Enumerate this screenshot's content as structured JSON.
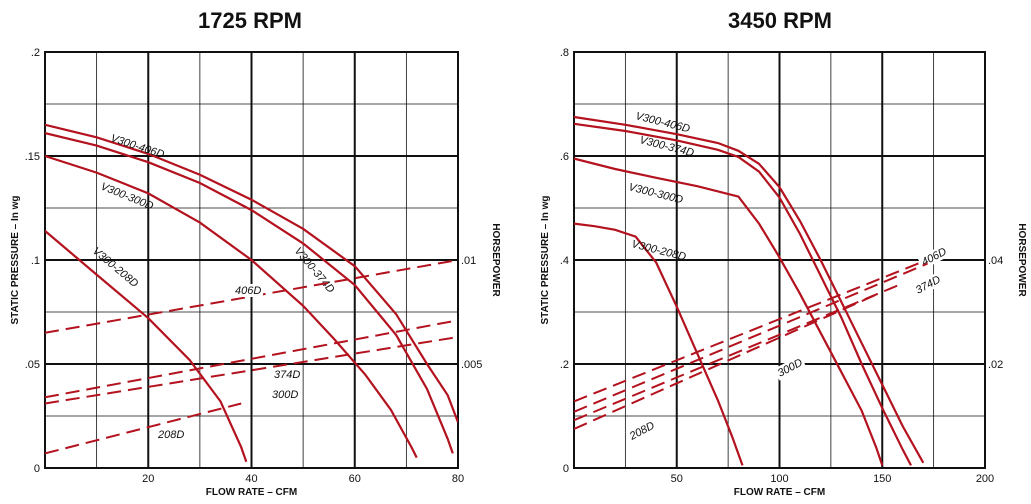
{
  "chart_data": [
    {
      "type": "line",
      "title": "1725 RPM",
      "xlabel": "FLOW RATE – CFM",
      "ylabel": "STATIC PRESSURE – In wg",
      "y2label": "HORSEPOWER",
      "xlim": [
        0,
        80
      ],
      "ylim": [
        0,
        0.2
      ],
      "y2lim": [
        0,
        0.02
      ],
      "xticks": [
        "20",
        "40",
        "60",
        "80"
      ],
      "yticks": [
        "0",
        ".05",
        ".1",
        ".15",
        ".2"
      ],
      "y2ticks": [
        ".005",
        ".01"
      ],
      "grid": true,
      "pressure_series": [
        {
          "name": "V300-406D",
          "points": [
            [
              0,
              0.165
            ],
            [
              10,
              0.159
            ],
            [
              20,
              0.151
            ],
            [
              30,
              0.141
            ],
            [
              40,
              0.129
            ],
            [
              50,
              0.115
            ],
            [
              60,
              0.097
            ],
            [
              68,
              0.074
            ],
            [
              74,
              0.05
            ],
            [
              78,
              0.035
            ],
            [
              80,
              0.022
            ]
          ]
        },
        {
          "name": "V300-374D",
          "points": [
            [
              0,
              0.161
            ],
            [
              10,
              0.155
            ],
            [
              20,
              0.147
            ],
            [
              30,
              0.137
            ],
            [
              40,
              0.124
            ],
            [
              50,
              0.108
            ],
            [
              60,
              0.088
            ],
            [
              68,
              0.064
            ],
            [
              74,
              0.038
            ],
            [
              78,
              0.014
            ],
            [
              79,
              0.007
            ]
          ]
        },
        {
          "name": "V300-300D",
          "points": [
            [
              0,
              0.15
            ],
            [
              10,
              0.142
            ],
            [
              20,
              0.132
            ],
            [
              30,
              0.118
            ],
            [
              40,
              0.1
            ],
            [
              50,
              0.078
            ],
            [
              56,
              0.062
            ],
            [
              62,
              0.045
            ],
            [
              67,
              0.028
            ],
            [
              71,
              0.01
            ],
            [
              72,
              0.005
            ]
          ]
        },
        {
          "name": "V300-208D",
          "points": [
            [
              0,
              0.114
            ],
            [
              10,
              0.093
            ],
            [
              20,
              0.072
            ],
            [
              28,
              0.052
            ],
            [
              34,
              0.032
            ],
            [
              38,
              0.01
            ],
            [
              39,
              0.003
            ]
          ]
        }
      ],
      "horsepower_series": [
        {
          "name": "406D",
          "points": [
            [
              0,
              0.0065
            ],
            [
              80,
              0.01
            ]
          ]
        },
        {
          "name": "374D",
          "points": [
            [
              0,
              0.0034
            ],
            [
              80,
              0.0071
            ]
          ]
        },
        {
          "name": "300D",
          "points": [
            [
              0,
              0.0031
            ],
            [
              80,
              0.0063
            ]
          ]
        },
        {
          "name": "208D",
          "points": [
            [
              0,
              0.0007
            ],
            [
              38,
              0.0031
            ]
          ]
        }
      ]
    },
    {
      "type": "line",
      "title": "3450 RPM",
      "xlabel": "FLOW RATE – CFM",
      "ylabel": "STATIC PRESSURE – In wg",
      "y2label": "HORSEPOWER",
      "xlim": [
        0,
        200
      ],
      "ylim": [
        0,
        0.8
      ],
      "y2lim": [
        0,
        0.08
      ],
      "xticks": [
        "50",
        "100",
        "150",
        "200"
      ],
      "yticks": [
        "0",
        ".2",
        ".4",
        ".6",
        ".8"
      ],
      "y2ticks": [
        ".02",
        ".04"
      ],
      "grid": true,
      "pressure_series": [
        {
          "name": "V300-406D",
          "points": [
            [
              0,
              0.675
            ],
            [
              25,
              0.66
            ],
            [
              50,
              0.642
            ],
            [
              70,
              0.625
            ],
            [
              80,
              0.61
            ],
            [
              90,
              0.585
            ],
            [
              100,
              0.54
            ],
            [
              110,
              0.475
            ],
            [
              120,
              0.4
            ],
            [
              130,
              0.32
            ],
            [
              140,
              0.24
            ],
            [
              150,
              0.16
            ],
            [
              160,
              0.08
            ],
            [
              170,
              0.01
            ]
          ]
        },
        {
          "name": "V300-374D",
          "points": [
            [
              0,
              0.662
            ],
            [
              25,
              0.648
            ],
            [
              50,
              0.63
            ],
            [
              70,
              0.612
            ],
            [
              80,
              0.598
            ],
            [
              90,
              0.57
            ],
            [
              100,
              0.52
            ],
            [
              110,
              0.45
            ],
            [
              120,
              0.37
            ],
            [
              130,
              0.29
            ],
            [
              140,
              0.2
            ],
            [
              150,
              0.115
            ],
            [
              160,
              0.035
            ],
            [
              164,
              0.005
            ]
          ]
        },
        {
          "name": "V300-300D",
          "points": [
            [
              0,
              0.595
            ],
            [
              20,
              0.575
            ],
            [
              40,
              0.558
            ],
            [
              60,
              0.542
            ],
            [
              80,
              0.522
            ],
            [
              90,
              0.47
            ],
            [
              100,
              0.405
            ],
            [
              110,
              0.335
            ],
            [
              120,
              0.26
            ],
            [
              130,
              0.185
            ],
            [
              140,
              0.11
            ],
            [
              147,
              0.04
            ],
            [
              150,
              0.005
            ]
          ]
        },
        {
          "name": "V300-208D",
          "points": [
            [
              0,
              0.47
            ],
            [
              10,
              0.465
            ],
            [
              20,
              0.458
            ],
            [
              30,
              0.445
            ],
            [
              40,
              0.395
            ],
            [
              50,
              0.31
            ],
            [
              60,
              0.22
            ],
            [
              70,
              0.13
            ],
            [
              77,
              0.06
            ],
            [
              82,
              0.005
            ]
          ]
        }
      ],
      "horsepower_series": [
        {
          "name": "406D",
          "points": [
            [
              0,
              0.0128
            ],
            [
              175,
              0.0405
            ]
          ]
        },
        {
          "name": "374D",
          "points": [
            [
              0,
              0.0108
            ],
            [
              172,
              0.0393
            ]
          ]
        },
        {
          "name": "300D",
          "points": [
            [
              0,
              0.0092
            ],
            [
              160,
              0.0355
            ]
          ]
        },
        {
          "name": "208D",
          "points": [
            [
              0,
              0.0075
            ],
            [
              148,
              0.0335
            ]
          ]
        }
      ]
    }
  ]
}
